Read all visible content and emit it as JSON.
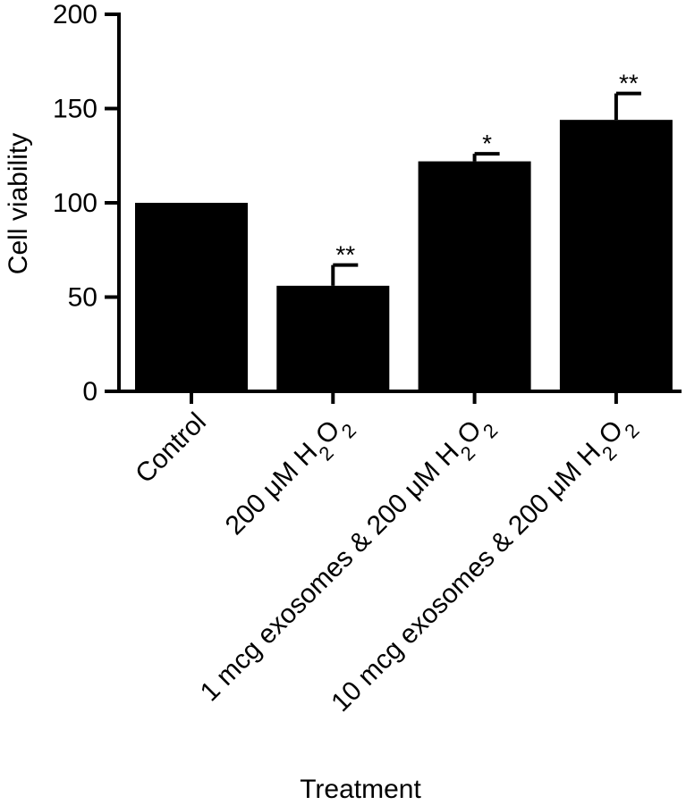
{
  "chart_data": {
    "type": "bar",
    "xlabel": "Treatment",
    "ylabel": "Cell viability",
    "ylim": [
      0,
      200
    ],
    "yticks": [
      "0",
      "50",
      "100",
      "150",
      "200"
    ],
    "grid": false,
    "bar_color": "#000000",
    "categories": [
      {
        "prefix": "Control",
        "h": "",
        "sub1": "",
        "o": "",
        "sub2": ""
      },
      {
        "prefix": "200 μM ",
        "h": "H",
        "sub1": "2",
        "o": "O",
        "sub2": "2"
      },
      {
        "prefix": "1 mcg exosomes & 200 μM ",
        "h": "H",
        "sub1": "2",
        "o": "O",
        "sub2": "2"
      },
      {
        "prefix": "10 mcg exosomes & 200 μM ",
        "h": "H",
        "sub1": "2",
        "o": "O",
        "sub2": "2"
      }
    ],
    "values": [
      100,
      56,
      122,
      144
    ],
    "errors": [
      0,
      11,
      4,
      14
    ],
    "significance": [
      "",
      "**",
      "*",
      "**"
    ]
  }
}
